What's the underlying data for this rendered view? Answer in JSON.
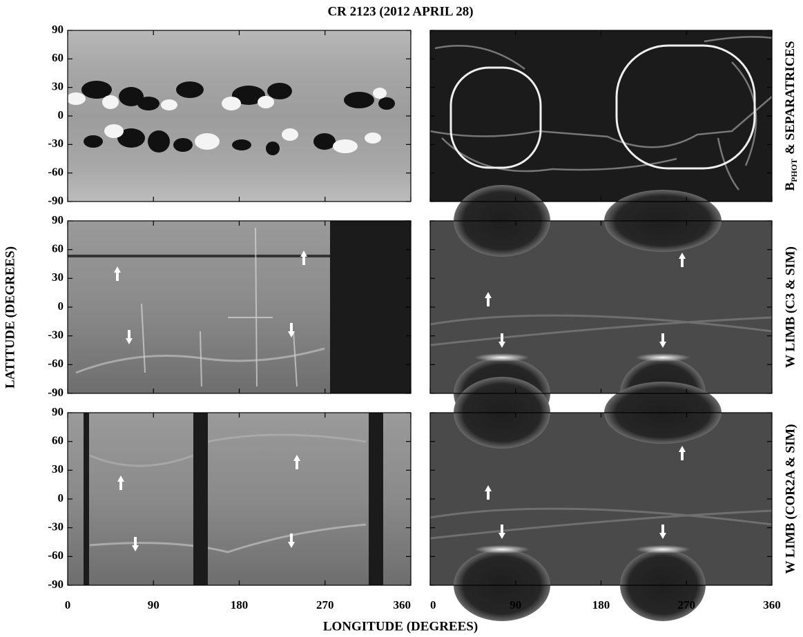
{
  "figure": {
    "title": "CR 2123  (2012  APRIL  28)",
    "x_label": "LONGITUDE  (DEGREES)",
    "y_label": "LATITUDE  (DEGREES)",
    "xlim": [
      0,
      360
    ],
    "ylim": [
      -90,
      90
    ],
    "xticks": [
      0,
      90,
      180,
      270,
      360
    ],
    "yticks": [
      90,
      60,
      30,
      0,
      -30,
      -60,
      -90
    ],
    "row_labels": [
      {
        "main": "B",
        "sub": "PHOT",
        "rest": "&  SEPARATRICES"
      },
      "W  LIMB  (C3 & SIM)",
      "W  LIMB  (COR2A & SIM)"
    ]
  }
}
